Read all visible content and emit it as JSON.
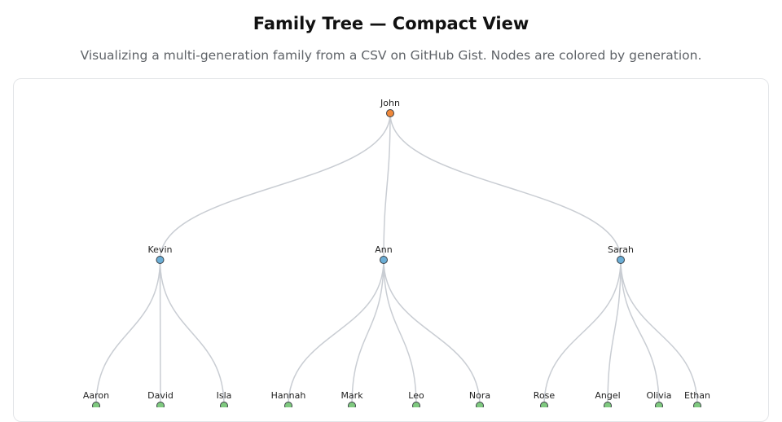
{
  "header": {
    "title": "Family Tree — Compact View",
    "subtitle": "Visualizing a multi-generation family from a CSV on GitHub Gist. Nodes are colored by generation."
  },
  "colors": {
    "generation_1": "#f0883a",
    "generation_2": "#6baed6",
    "generation_3": "#7fc97f",
    "link": "#c9cdd3"
  },
  "tree": {
    "name": "John",
    "children": [
      {
        "name": "Kevin",
        "children": [
          {
            "name": "Aaron"
          },
          {
            "name": "David"
          },
          {
            "name": "Isla"
          }
        ]
      },
      {
        "name": "Ann",
        "children": [
          {
            "name": "Hannah"
          },
          {
            "name": "Mark"
          },
          {
            "name": "Leo"
          },
          {
            "name": "Nora"
          }
        ]
      },
      {
        "name": "Sarah",
        "children": [
          {
            "name": "Rose"
          },
          {
            "name": "Angel"
          },
          {
            "name": "Olivia"
          },
          {
            "name": "Ethan"
          }
        ]
      }
    ]
  }
}
